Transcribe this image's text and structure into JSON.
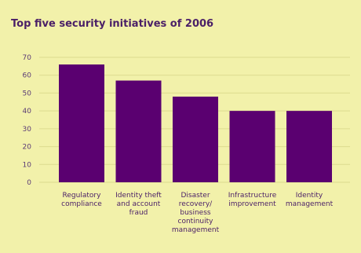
{
  "chart_data": {
    "type": "bar",
    "title": "Top five security initiatives of 2006",
    "xlabel": "",
    "ylabel": "",
    "ylim": [
      0,
      70
    ],
    "yticks": [
      0,
      10,
      20,
      30,
      40,
      50,
      60,
      70
    ],
    "grid": true,
    "categories": [
      [
        "Regulatory",
        "compliance"
      ],
      [
        "Identity theft",
        "and account",
        "fraud"
      ],
      [
        "Disaster",
        "recovery/",
        "business",
        "continuity",
        "management"
      ],
      [
        "Infrastructure",
        "improvement"
      ],
      [
        "Identity",
        "management"
      ]
    ],
    "values": [
      66,
      57,
      48,
      40,
      40
    ],
    "colors": {
      "background": "#f2f1aa",
      "bar": "#5a0070",
      "text": "#4a1f67"
    }
  }
}
